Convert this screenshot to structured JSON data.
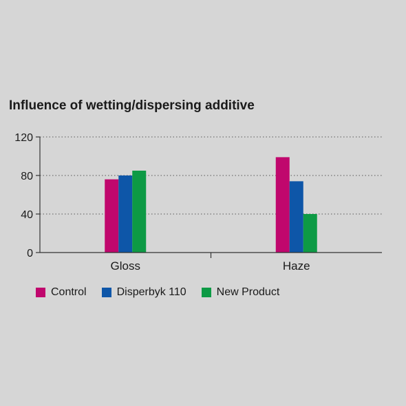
{
  "chart_data": {
    "type": "bar",
    "title": "Influence of wetting/dispersing additive",
    "categories": [
      "Gloss",
      "Haze"
    ],
    "series": [
      {
        "name": "Control",
        "values": [
          76,
          99
        ],
        "color": "#c0076d"
      },
      {
        "name": "Disperbyk 110",
        "values": [
          80,
          74
        ],
        "color": "#0e56a8"
      },
      {
        "name": "New Product",
        "values": [
          85,
          40
        ],
        "color": "#0d9a45"
      }
    ],
    "ylim": [
      0,
      120
    ],
    "yticks": [
      0,
      40,
      80,
      120
    ],
    "xlabel": "",
    "ylabel": "",
    "grid": "horizontal-dotted",
    "legend": "bottom"
  }
}
